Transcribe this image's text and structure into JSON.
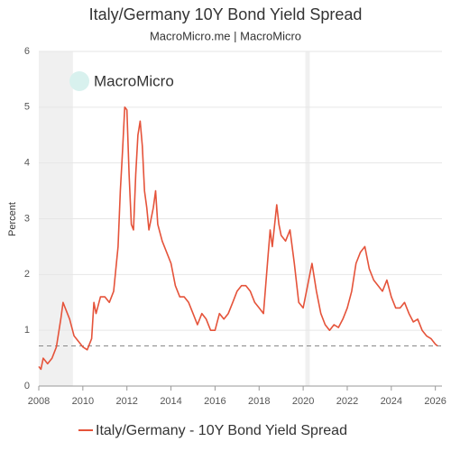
{
  "chart_data": {
    "type": "line",
    "title": "Italy/Germany 10Y Bond Yield Spread",
    "subtitle": "MacroMicro.me | MacroMicro",
    "watermark": "MacroMicro",
    "y_label": "Percent",
    "x": [
      2008.0,
      2008.1,
      2008.2,
      2008.4,
      2008.6,
      2008.8,
      2009.0,
      2009.1,
      2009.2,
      2009.4,
      2009.6,
      2009.8,
      2010.0,
      2010.2,
      2010.4,
      2010.5,
      2010.6,
      2010.8,
      2011.0,
      2011.2,
      2011.4,
      2011.6,
      2011.7,
      2011.8,
      2011.9,
      2012.0,
      2012.1,
      2012.2,
      2012.3,
      2012.4,
      2012.5,
      2012.6,
      2012.7,
      2012.8,
      2012.9,
      2013.0,
      2013.2,
      2013.3,
      2013.4,
      2013.6,
      2013.8,
      2014.0,
      2014.2,
      2014.4,
      2014.6,
      2014.8,
      2015.0,
      2015.2,
      2015.4,
      2015.6,
      2015.8,
      2016.0,
      2016.2,
      2016.4,
      2016.6,
      2016.8,
      2017.0,
      2017.2,
      2017.4,
      2017.6,
      2017.8,
      2018.0,
      2018.2,
      2018.4,
      2018.5,
      2018.6,
      2018.8,
      2018.9,
      2019.0,
      2019.2,
      2019.4,
      2019.6,
      2019.8,
      2020.0,
      2020.2,
      2020.4,
      2020.6,
      2020.8,
      2021.0,
      2021.2,
      2021.4,
      2021.6,
      2021.8,
      2022.0,
      2022.2,
      2022.4,
      2022.6,
      2022.8,
      2023.0,
      2023.2,
      2023.4,
      2023.6,
      2023.8,
      2024.0,
      2024.2,
      2024.4,
      2024.6,
      2024.8,
      2025.0,
      2025.2,
      2025.4,
      2025.6,
      2025.8,
      2026.0,
      2026.1
    ],
    "series": [
      {
        "name": "Italy/Germany - 10Y Bond Yield Spread",
        "color": "#e5533a",
        "values": [
          0.35,
          0.3,
          0.5,
          0.4,
          0.5,
          0.7,
          1.2,
          1.5,
          1.4,
          1.2,
          0.9,
          0.8,
          0.7,
          0.65,
          0.85,
          1.5,
          1.3,
          1.6,
          1.6,
          1.5,
          1.7,
          2.5,
          3.5,
          4.2,
          5.0,
          4.95,
          3.8,
          2.9,
          2.8,
          3.8,
          4.5,
          4.75,
          4.3,
          3.5,
          3.2,
          2.8,
          3.2,
          3.5,
          2.9,
          2.6,
          2.4,
          2.2,
          1.8,
          1.6,
          1.6,
          1.5,
          1.3,
          1.1,
          1.3,
          1.2,
          1.0,
          1.0,
          1.3,
          1.2,
          1.3,
          1.5,
          1.7,
          1.8,
          1.8,
          1.7,
          1.5,
          1.4,
          1.3,
          2.3,
          2.8,
          2.5,
          3.25,
          2.9,
          2.7,
          2.6,
          2.8,
          2.2,
          1.5,
          1.4,
          1.8,
          2.2,
          1.7,
          1.3,
          1.1,
          1.0,
          1.1,
          1.05,
          1.2,
          1.4,
          1.7,
          2.2,
          2.4,
          2.5,
          2.1,
          1.9,
          1.8,
          1.7,
          1.9,
          1.6,
          1.4,
          1.4,
          1.5,
          1.3,
          1.15,
          1.2,
          1.0,
          0.9,
          0.85,
          0.75,
          0.72
        ]
      }
    ],
    "reference_line": 0.72,
    "shaded_regions": [
      [
        2008.0,
        2009.55
      ],
      [
        2020.1,
        2020.3
      ]
    ],
    "xlim": [
      2008,
      2026.3
    ],
    "ylim": [
      0,
      6
    ],
    "xticks": [
      2008,
      2010,
      2012,
      2014,
      2016,
      2018,
      2020,
      2022,
      2024,
      2026
    ],
    "yticks": [
      0,
      1,
      2,
      3,
      4,
      5,
      6
    ],
    "grid": true
  }
}
